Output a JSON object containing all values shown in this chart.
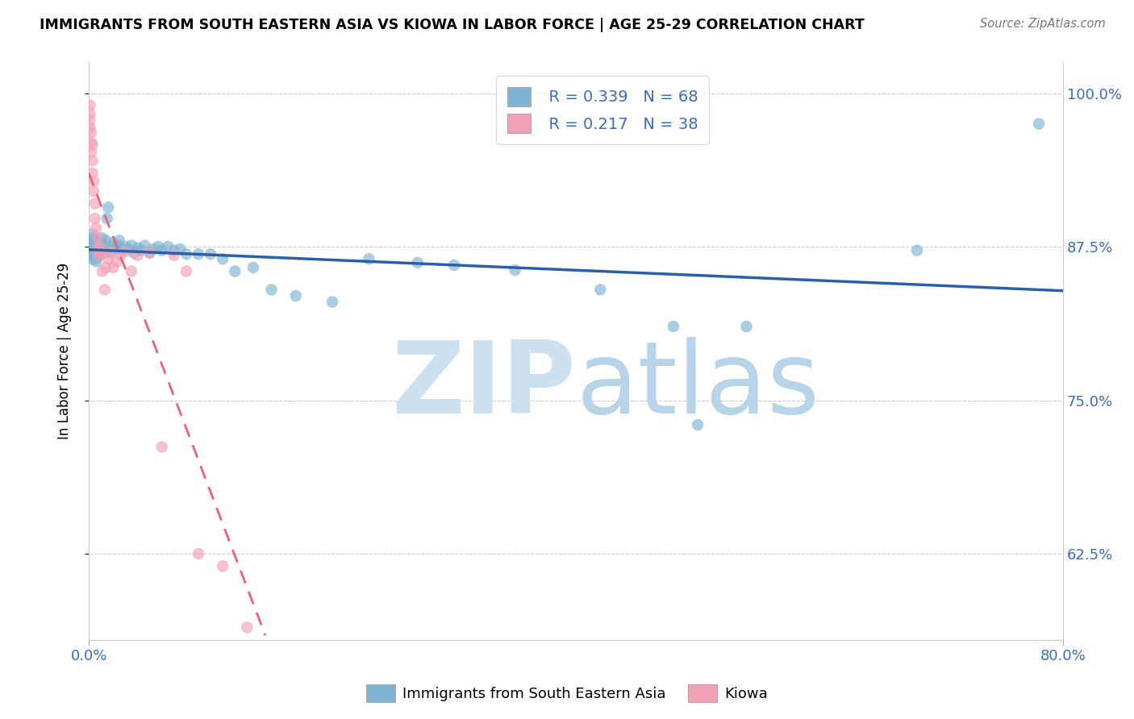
{
  "title": "IMMIGRANTS FROM SOUTH EASTERN ASIA VS KIOWA IN LABOR FORCE | AGE 25-29 CORRELATION CHART",
  "source": "Source: ZipAtlas.com",
  "ylabel": "In Labor Force | Age 25-29",
  "xlim": [
    0.0,
    0.8
  ],
  "ylim": [
    0.555,
    1.025
  ],
  "yticks": [
    0.625,
    0.75,
    0.875,
    1.0
  ],
  "yticklabels": [
    "62.5%",
    "75.0%",
    "87.5%",
    "100.0%"
  ],
  "blue_R": 0.339,
  "blue_N": 68,
  "pink_R": 0.217,
  "pink_N": 38,
  "blue_color": "#7fb3d3",
  "pink_color": "#f2a0b5",
  "blue_line_color": "#2b5faa",
  "pink_line_color": "#e8637a",
  "watermark": "ZIPatlas",
  "watermark_zip_color": "#cce0f0",
  "watermark_atlas_color": "#b8d4e8",
  "blue_x": [
    0.002,
    0.002,
    0.002,
    0.003,
    0.003,
    0.003,
    0.003,
    0.004,
    0.004,
    0.004,
    0.005,
    0.005,
    0.005,
    0.006,
    0.006,
    0.006,
    0.007,
    0.007,
    0.008,
    0.008,
    0.009,
    0.01,
    0.011,
    0.012,
    0.013,
    0.014,
    0.015,
    0.016,
    0.018,
    0.019,
    0.02,
    0.022,
    0.024,
    0.025,
    0.027,
    0.03,
    0.032,
    0.035,
    0.037,
    0.04,
    0.043,
    0.046,
    0.05,
    0.053,
    0.057,
    0.06,
    0.065,
    0.07,
    0.075,
    0.08,
    0.09,
    0.1,
    0.11,
    0.12,
    0.135,
    0.15,
    0.17,
    0.2,
    0.23,
    0.27,
    0.3,
    0.35,
    0.42,
    0.48,
    0.5,
    0.54,
    0.68,
    0.78
  ],
  "blue_y": [
    0.88,
    0.875,
    0.87,
    0.885,
    0.878,
    0.872,
    0.865,
    0.882,
    0.875,
    0.868,
    0.88,
    0.873,
    0.865,
    0.878,
    0.871,
    0.863,
    0.877,
    0.869,
    0.875,
    0.867,
    0.873,
    0.878,
    0.882,
    0.876,
    0.87,
    0.88,
    0.898,
    0.907,
    0.871,
    0.875,
    0.878,
    0.873,
    0.876,
    0.88,
    0.872,
    0.875,
    0.873,
    0.876,
    0.87,
    0.874,
    0.872,
    0.876,
    0.87,
    0.873,
    0.875,
    0.872,
    0.875,
    0.872,
    0.873,
    0.869,
    0.869,
    0.869,
    0.865,
    0.855,
    0.858,
    0.84,
    0.835,
    0.83,
    0.865,
    0.862,
    0.86,
    0.856,
    0.84,
    0.81,
    0.73,
    0.81,
    0.872,
    0.975
  ],
  "pink_x": [
    0.001,
    0.001,
    0.001,
    0.001,
    0.002,
    0.002,
    0.002,
    0.003,
    0.003,
    0.003,
    0.004,
    0.004,
    0.005,
    0.005,
    0.006,
    0.007,
    0.007,
    0.008,
    0.009,
    0.01,
    0.011,
    0.013,
    0.014,
    0.016,
    0.018,
    0.02,
    0.023,
    0.026,
    0.03,
    0.035,
    0.04,
    0.05,
    0.06,
    0.07,
    0.08,
    0.09,
    0.11,
    0.13
  ],
  "pink_y": [
    0.99,
    0.983,
    0.978,
    0.972,
    0.968,
    0.96,
    0.952,
    0.958,
    0.945,
    0.935,
    0.928,
    0.92,
    0.91,
    0.898,
    0.89,
    0.882,
    0.873,
    0.868,
    0.875,
    0.87,
    0.855,
    0.84,
    0.858,
    0.865,
    0.87,
    0.858,
    0.863,
    0.868,
    0.871,
    0.855,
    0.868,
    0.87,
    0.712,
    0.868,
    0.855,
    0.625,
    0.615,
    0.565
  ]
}
